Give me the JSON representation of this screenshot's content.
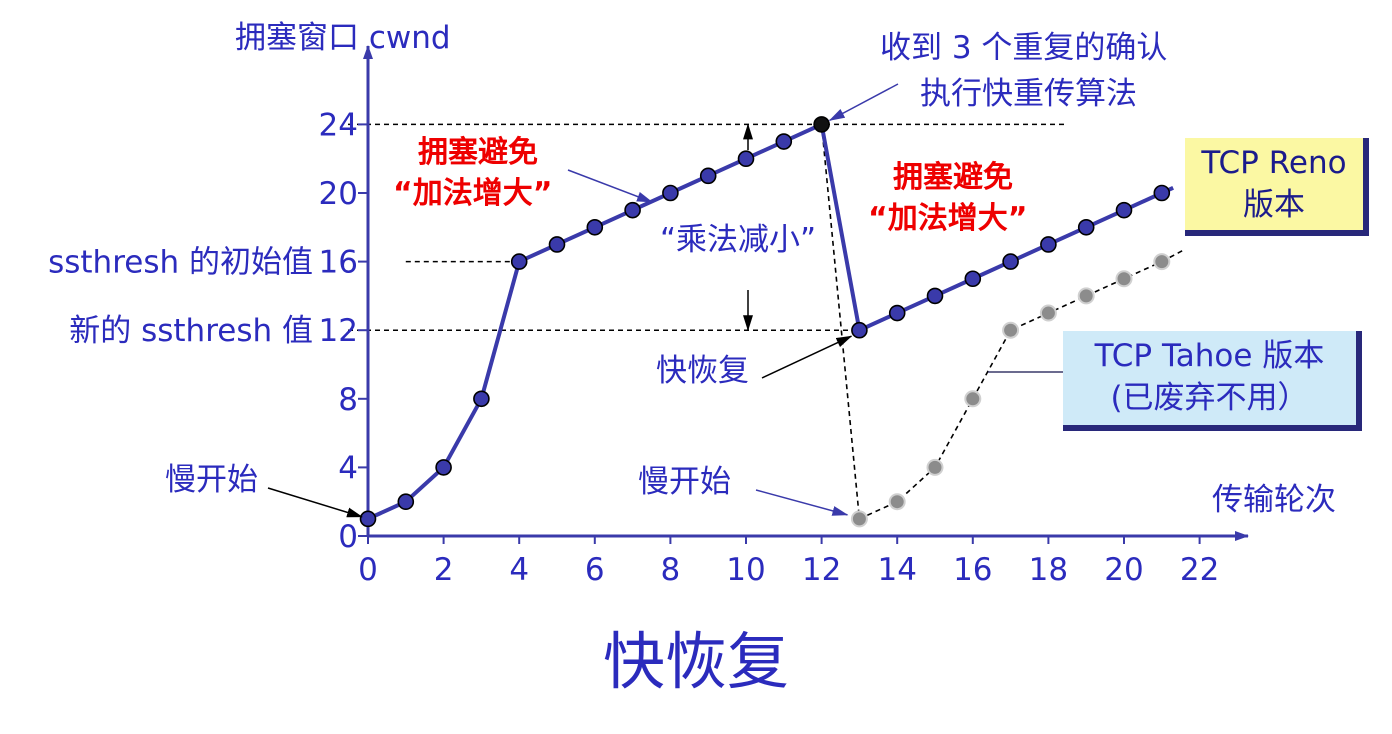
{
  "chart_data": [
    {
      "type": "line",
      "title": "快恢复",
      "ylabel": "拥塞窗口 cwnd",
      "xlabel": "传输轮次",
      "x_ticks": [
        0,
        2,
        4,
        6,
        8,
        10,
        12,
        14,
        16,
        18,
        20,
        22
      ],
      "y_ticks": [
        0,
        4,
        8,
        12,
        16,
        20,
        24
      ],
      "xlim": [
        0,
        23
      ],
      "ylim": [
        0,
        28
      ],
      "legend": "boxes at right",
      "series": [
        {
          "name": "TCP Reno 版本",
          "style": "solid",
          "color": "#3a3aaa",
          "points": [
            [
              0,
              1
            ],
            [
              1,
              2
            ],
            [
              2,
              4
            ],
            [
              3,
              8
            ],
            [
              4,
              16
            ],
            [
              5,
              17
            ],
            [
              6,
              18
            ],
            [
              7,
              19
            ],
            [
              8,
              20
            ],
            [
              9,
              21
            ],
            [
              10,
              22
            ],
            [
              11,
              23
            ],
            [
              12,
              24
            ],
            [
              13,
              12
            ],
            [
              14,
              13
            ],
            [
              15,
              14
            ],
            [
              16,
              15
            ],
            [
              17,
              16
            ],
            [
              18,
              17
            ],
            [
              19,
              18
            ],
            [
              20,
              19
            ],
            [
              21,
              20
            ]
          ]
        },
        {
          "name": "TCP Tahoe 版本 (已废弃不用）",
          "style": "dashed",
          "color": "#888888",
          "points": [
            [
              12,
              24
            ],
            [
              13,
              1
            ],
            [
              14,
              2
            ],
            [
              15,
              4
            ],
            [
              16,
              8
            ],
            [
              17,
              12
            ],
            [
              18,
              13
            ],
            [
              19,
              14
            ],
            [
              20,
              15
            ],
            [
              21,
              16
            ]
          ]
        }
      ],
      "annotations": {
        "initial_ssthresh": "ssthresh 的初始值",
        "new_ssthresh": "新的 ssthresh 值",
        "slow_start_1": "慢开始",
        "slow_start_2": "慢开始",
        "ca1_line1": "拥塞避免",
        "ca1_line2": "“加法增大”",
        "ca2_line1": "拥塞避免",
        "ca2_line2": "“加法增大”",
        "mult_decrease": "“乘法减小”",
        "three_dup_line1": "收到 3 个重复的确认",
        "three_dup_line2": "执行快重传算法",
        "fast_recovery": "快恢复"
      },
      "boxes": {
        "reno_line1": "TCP Reno",
        "reno_line2": "版本",
        "tahoe_line1": "TCP Tahoe 版本",
        "tahoe_line2": "(已废弃不用）"
      },
      "colors": {
        "axis": "#3a3aaa",
        "text": "#2b2bbd",
        "highlight": "#ee0000",
        "reno_box": "#fbf8a3",
        "tahoe_box": "#cfeaf8"
      }
    }
  ]
}
